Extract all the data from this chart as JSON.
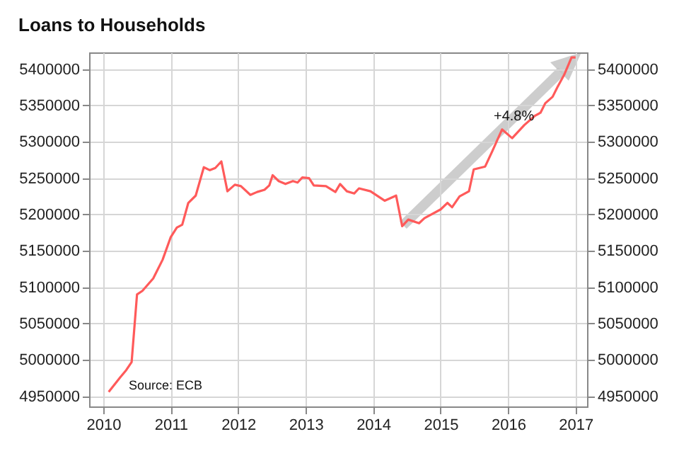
{
  "chart_data": {
    "type": "line",
    "title": "Loans to Households",
    "x": [
      2010.08,
      2010.25,
      2010.34,
      2010.42,
      2010.5,
      2010.58,
      2010.74,
      2010.88,
      2011.0,
      2011.09,
      2011.17,
      2011.26,
      2011.37,
      2011.49,
      2011.58,
      2011.66,
      2011.75,
      2011.84,
      2011.95,
      2012.04,
      2012.18,
      2012.28,
      2012.39,
      2012.46,
      2012.51,
      2012.6,
      2012.7,
      2012.81,
      2012.88,
      2012.95,
      2013.05,
      2013.12,
      2013.3,
      2013.44,
      2013.51,
      2013.61,
      2013.72,
      2013.79,
      2013.96,
      2014.17,
      2014.34,
      2014.43,
      2014.52,
      2014.68,
      2014.76,
      2015.0,
      2015.1,
      2015.17,
      2015.28,
      2015.42,
      2015.49,
      2015.66,
      2015.77,
      2015.91,
      2016.06,
      2016.24,
      2016.4,
      2016.48,
      2016.55,
      2016.66,
      2016.73,
      2016.83,
      2016.94,
      2017.0
    ],
    "series": [
      {
        "color": "#ff5a5a",
        "values": [
          4956000,
          4976000,
          4986000,
          4997000,
          5090000,
          5095000,
          5112000,
          5138000,
          5169000,
          5182000,
          5186000,
          5216000,
          5226000,
          5265000,
          5261000,
          5264000,
          5273000,
          5232000,
          5241000,
          5239000,
          5227000,
          5231000,
          5234000,
          5240000,
          5254000,
          5246000,
          5242000,
          5246000,
          5244000,
          5251000,
          5250000,
          5240000,
          5239000,
          5231000,
          5242000,
          5232000,
          5229000,
          5236000,
          5232000,
          5219000,
          5226000,
          5184000,
          5193000,
          5188000,
          5195000,
          5207000,
          5216000,
          5210000,
          5225000,
          5232000,
          5262000,
          5266000,
          5288000,
          5317000,
          5305000,
          5323000,
          5336000,
          5340000,
          5353000,
          5362000,
          5375000,
          5392000,
          5416000,
          5416000
        ]
      }
    ],
    "xlim": [
      2009.79,
      2017.17
    ],
    "xticks": [
      2010,
      2011,
      2012,
      2013,
      2014,
      2015,
      2016,
      2017
    ],
    "ylim": [
      4936000,
      5423000
    ],
    "yticks": [
      4950000,
      5000000,
      5050000,
      5100000,
      5150000,
      5200000,
      5250000,
      5300000,
      5350000,
      5400000
    ],
    "y2lim": [
      4936000,
      5423000
    ],
    "y2ticks": [
      4950000,
      5000000,
      5050000,
      5100000,
      5150000,
      5200000,
      5250000,
      5300000,
      5350000,
      5400000
    ],
    "grid": true,
    "annotations": [
      "+4.8%",
      "Source: ECB"
    ]
  }
}
